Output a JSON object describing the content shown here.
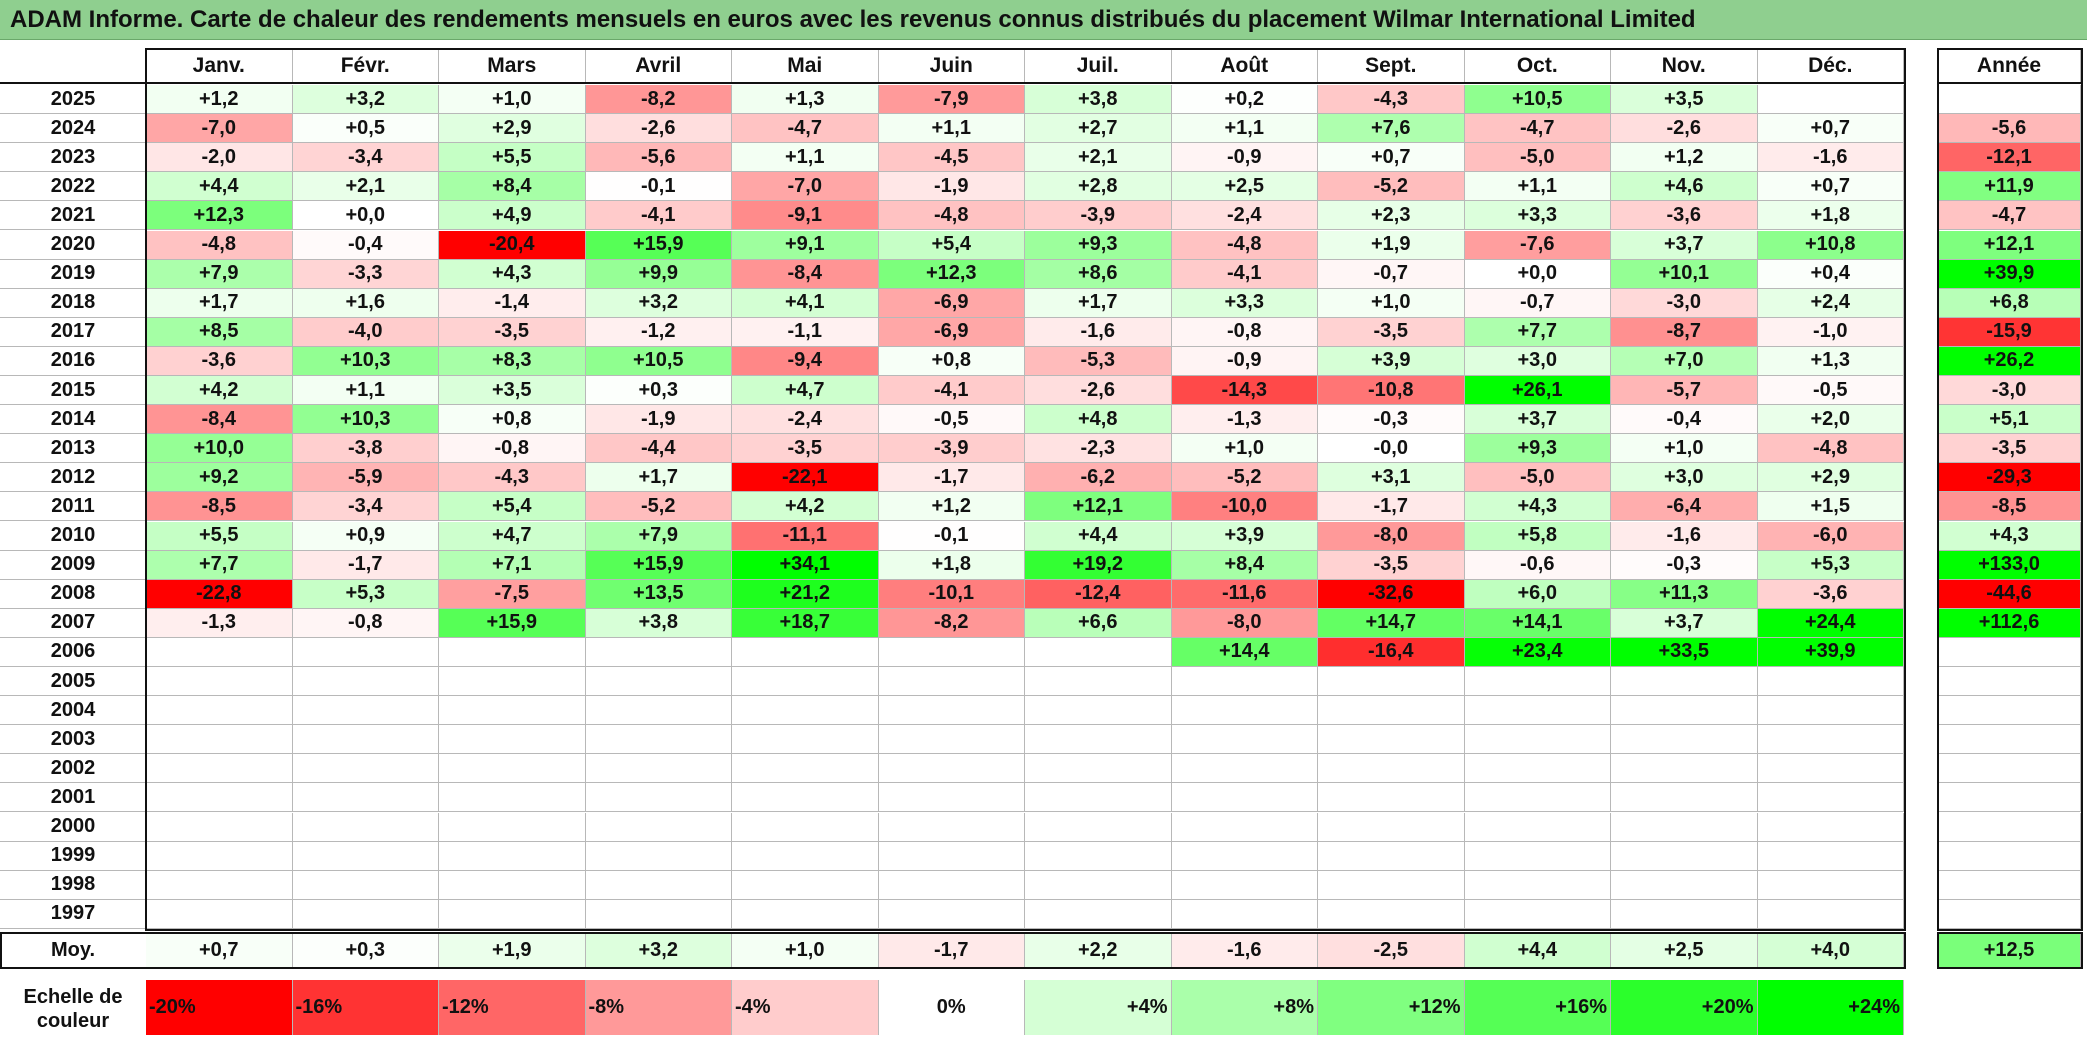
{
  "title": "ADAM Informe. Carte de chaleur des rendements mensuels en euros avec les revenus connus distribués du placement Wilmar International Limited",
  "chart_data": {
    "type": "heatmap",
    "title": "ADAM Informe. Carte de chaleur des rendements mensuels en euros avec les revenus connus distribués du placement Wilmar International Limited",
    "months": [
      "Janv.",
      "Févr.",
      "Mars",
      "Avril",
      "Mai",
      "Juin",
      "Juil.",
      "Août",
      "Sept.",
      "Oct.",
      "Nov.",
      "Déc."
    ],
    "year_column_label": "Année",
    "avg_label": "Moy.",
    "rows": [
      {
        "year": "2025",
        "values": [
          "+1,2",
          "+3,2",
          "+1,0",
          "-8,2",
          "+1,3",
          "-7,9",
          "+3,8",
          "+0,2",
          "-4,3",
          "+10,5",
          "+3,5",
          ""
        ],
        "annual": ""
      },
      {
        "year": "2024",
        "values": [
          "-7,0",
          "+0,5",
          "+2,9",
          "-2,6",
          "-4,7",
          "+1,1",
          "+2,7",
          "+1,1",
          "+7,6",
          "-4,7",
          "-2,6",
          "+0,7"
        ],
        "annual": "-5,6"
      },
      {
        "year": "2023",
        "values": [
          "-2,0",
          "-3,4",
          "+5,5",
          "-5,6",
          "+1,1",
          "-4,5",
          "+2,1",
          "-0,9",
          "+0,7",
          "-5,0",
          "+1,2",
          "-1,6"
        ],
        "annual": "-12,1"
      },
      {
        "year": "2022",
        "values": [
          "+4,4",
          "+2,1",
          "+8,4",
          "-0,1",
          "-7,0",
          "-1,9",
          "+2,8",
          "+2,5",
          "-5,2",
          "+1,1",
          "+4,6",
          "+0,7"
        ],
        "annual": "+11,9"
      },
      {
        "year": "2021",
        "values": [
          "+12,3",
          "+0,0",
          "+4,9",
          "-4,1",
          "-9,1",
          "-4,8",
          "-3,9",
          "-2,4",
          "+2,3",
          "+3,3",
          "-3,6",
          "+1,8"
        ],
        "annual": "-4,7"
      },
      {
        "year": "2020",
        "values": [
          "-4,8",
          "-0,4",
          "-20,4",
          "+15,9",
          "+9,1",
          "+5,4",
          "+9,3",
          "-4,8",
          "+1,9",
          "-7,6",
          "+3,7",
          "+10,8"
        ],
        "annual": "+12,1"
      },
      {
        "year": "2019",
        "values": [
          "+7,9",
          "-3,3",
          "+4,3",
          "+9,9",
          "-8,4",
          "+12,3",
          "+8,6",
          "-4,1",
          "-0,7",
          "+0,0",
          "+10,1",
          "+0,4"
        ],
        "annual": "+39,9"
      },
      {
        "year": "2018",
        "values": [
          "+1,7",
          "+1,6",
          "-1,4",
          "+3,2",
          "+4,1",
          "-6,9",
          "+1,7",
          "+3,3",
          "+1,0",
          "-0,7",
          "-3,0",
          "+2,4"
        ],
        "annual": "+6,8"
      },
      {
        "year": "2017",
        "values": [
          "+8,5",
          "-4,0",
          "-3,5",
          "-1,2",
          "-1,1",
          "-6,9",
          "-1,6",
          "-0,8",
          "-3,5",
          "+7,7",
          "-8,7",
          "-1,0"
        ],
        "annual": "-15,9"
      },
      {
        "year": "2016",
        "values": [
          "-3,6",
          "+10,3",
          "+8,3",
          "+10,5",
          "-9,4",
          "+0,8",
          "-5,3",
          "-0,9",
          "+3,9",
          "+3,0",
          "+7,0",
          "+1,3"
        ],
        "annual": "+26,2"
      },
      {
        "year": "2015",
        "values": [
          "+4,2",
          "+1,1",
          "+3,5",
          "+0,3",
          "+4,7",
          "-4,1",
          "-2,6",
          "-14,3",
          "-10,8",
          "+26,1",
          "-5,7",
          "-0,5"
        ],
        "annual": "-3,0"
      },
      {
        "year": "2014",
        "values": [
          "-8,4",
          "+10,3",
          "+0,8",
          "-1,9",
          "-2,4",
          "-0,5",
          "+4,8",
          "-1,3",
          "-0,3",
          "+3,7",
          "-0,4",
          "+2,0"
        ],
        "annual": "+5,1"
      },
      {
        "year": "2013",
        "values": [
          "+10,0",
          "-3,8",
          "-0,8",
          "-4,4",
          "-3,5",
          "-3,9",
          "-2,3",
          "+1,0",
          "-0,0",
          "+9,3",
          "+1,0",
          "-4,8"
        ],
        "annual": "-3,5"
      },
      {
        "year": "2012",
        "values": [
          "+9,2",
          "-5,9",
          "-4,3",
          "+1,7",
          "-22,1",
          "-1,7",
          "-6,2",
          "-5,2",
          "+3,1",
          "-5,0",
          "+3,0",
          "+2,9"
        ],
        "annual": "-29,3"
      },
      {
        "year": "2011",
        "values": [
          "-8,5",
          "-3,4",
          "+5,4",
          "-5,2",
          "+4,2",
          "+1,2",
          "+12,1",
          "-10,0",
          "-1,7",
          "+4,3",
          "-6,4",
          "+1,5"
        ],
        "annual": "-8,5"
      },
      {
        "year": "2010",
        "values": [
          "+5,5",
          "+0,9",
          "+4,7",
          "+7,9",
          "-11,1",
          "-0,1",
          "+4,4",
          "+3,9",
          "-8,0",
          "+5,8",
          "-1,6",
          "-6,0"
        ],
        "annual": "+4,3"
      },
      {
        "year": "2009",
        "values": [
          "+7,7",
          "-1,7",
          "+7,1",
          "+15,9",
          "+34,1",
          "+1,8",
          "+19,2",
          "+8,4",
          "-3,5",
          "-0,6",
          "-0,3",
          "+5,3"
        ],
        "annual": "+133,0"
      },
      {
        "year": "2008",
        "values": [
          "-22,8",
          "+5,3",
          "-7,5",
          "+13,5",
          "+21,2",
          "-10,1",
          "-12,4",
          "-11,6",
          "-32,6",
          "+6,0",
          "+11,3",
          "-3,6"
        ],
        "annual": "-44,6"
      },
      {
        "year": "2007",
        "values": [
          "-1,3",
          "-0,8",
          "+15,9",
          "+3,8",
          "+18,7",
          "-8,2",
          "+6,6",
          "-8,0",
          "+14,7",
          "+14,1",
          "+3,7",
          "+24,4"
        ],
        "annual": "+112,6"
      },
      {
        "year": "2006",
        "values": [
          "",
          "",
          "",
          "",
          "",
          "",
          "",
          "+14,4",
          "-16,4",
          "+23,4",
          "+33,5",
          "+39,9"
        ],
        "annual": ""
      },
      {
        "year": "2005",
        "values": [
          "",
          "",
          "",
          "",
          "",
          "",
          "",
          "",
          "",
          "",
          "",
          ""
        ],
        "annual": ""
      },
      {
        "year": "2004",
        "values": [
          "",
          "",
          "",
          "",
          "",
          "",
          "",
          "",
          "",
          "",
          "",
          ""
        ],
        "annual": ""
      },
      {
        "year": "2003",
        "values": [
          "",
          "",
          "",
          "",
          "",
          "",
          "",
          "",
          "",
          "",
          "",
          ""
        ],
        "annual": ""
      },
      {
        "year": "2002",
        "values": [
          "",
          "",
          "",
          "",
          "",
          "",
          "",
          "",
          "",
          "",
          "",
          ""
        ],
        "annual": ""
      },
      {
        "year": "2001",
        "values": [
          "",
          "",
          "",
          "",
          "",
          "",
          "",
          "",
          "",
          "",
          "",
          ""
        ],
        "annual": ""
      },
      {
        "year": "2000",
        "values": [
          "",
          "",
          "",
          "",
          "",
          "",
          "",
          "",
          "",
          "",
          "",
          ""
        ],
        "annual": ""
      },
      {
        "year": "1999",
        "values": [
          "",
          "",
          "",
          "",
          "",
          "",
          "",
          "",
          "",
          "",
          "",
          ""
        ],
        "annual": ""
      },
      {
        "year": "1998",
        "values": [
          "",
          "",
          "",
          "",
          "",
          "",
          "",
          "",
          "",
          "",
          "",
          ""
        ],
        "annual": ""
      },
      {
        "year": "1997",
        "values": [
          "",
          "",
          "",
          "",
          "",
          "",
          "",
          "",
          "",
          "",
          "",
          ""
        ],
        "annual": ""
      }
    ],
    "averages": [
      "+0,7",
      "+0,3",
      "+1,9",
      "+3,2",
      "+1,0",
      "-1,7",
      "+2,2",
      "-1,6",
      "-2,5",
      "+4,4",
      "+2,5",
      "+4,0"
    ],
    "annual_average": "+12,5",
    "scale_label": "Echelle de couleur",
    "scale_steps": [
      "-20%",
      "-16%",
      "-12%",
      "-8%",
      "-4%",
      "0%",
      "+4%",
      "+8%",
      "+12%",
      "+16%",
      "+20%",
      "+24%"
    ],
    "color_min": "#ff0000",
    "color_zero": "#ffffff",
    "color_max": "#00ff00"
  }
}
